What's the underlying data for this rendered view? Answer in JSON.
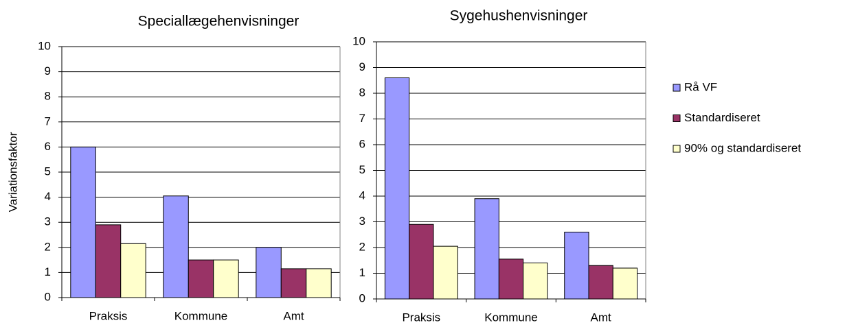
{
  "chart_data": [
    {
      "type": "bar",
      "title": "Speciallægehenvisninger",
      "y_label": "Variationsfaktor",
      "categories": [
        "Praksis",
        "Kommune",
        "Amt"
      ],
      "series": [
        {
          "color": "#9999ff",
          "values": [
            6.0,
            4.05,
            2.0
          ]
        },
        {
          "color": "#993366",
          "values": [
            2.9,
            1.5,
            1.15
          ]
        },
        {
          "color": "#ffffcc",
          "values": [
            2.15,
            1.5,
            1.15
          ]
        }
      ],
      "ylim": [
        0,
        10
      ],
      "yticks": [
        0,
        1,
        2,
        3,
        4,
        5,
        6,
        7,
        8,
        9,
        10
      ],
      "grid": true
    },
    {
      "type": "bar",
      "title": "Sygehushenvisninger",
      "categories": [
        "Praksis",
        "Kommune",
        "Amt"
      ],
      "series": [
        {
          "name": "Rå VF",
          "color": "#9999ff",
          "values": [
            8.6,
            3.9,
            2.6
          ]
        },
        {
          "name": "Standardiseret",
          "color": "#993366",
          "values": [
            2.9,
            1.55,
            1.3
          ]
        },
        {
          "name": "90% og standardiseret",
          "color": "#ffffcc",
          "values": [
            2.05,
            1.4,
            1.2
          ]
        }
      ],
      "ylim": [
        0,
        10
      ],
      "yticks": [
        0,
        1,
        2,
        3,
        4,
        5,
        6,
        7,
        8,
        9,
        10
      ],
      "grid": true,
      "legend": "right"
    }
  ]
}
